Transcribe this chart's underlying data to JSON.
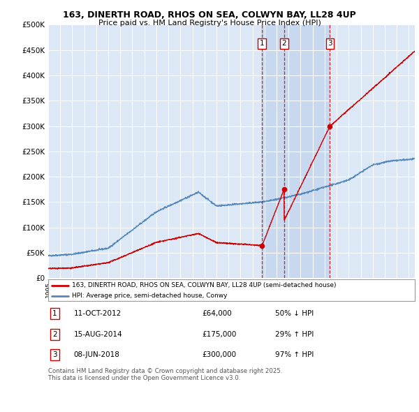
{
  "title_line1": "163, DINERTH ROAD, RHOS ON SEA, COLWYN BAY, LL28 4UP",
  "title_line2": "Price paid vs. HM Land Registry's House Price Index (HPI)",
  "plot_bg_color": "#dce8f5",
  "shade_color": "#c8d8ee",
  "ylim": [
    0,
    500000
  ],
  "yticks": [
    0,
    50000,
    100000,
    150000,
    200000,
    250000,
    300000,
    350000,
    400000,
    450000,
    500000
  ],
  "ytick_labels": [
    "£0",
    "£50K",
    "£100K",
    "£150K",
    "£200K",
    "£250K",
    "£300K",
    "£350K",
    "£400K",
    "£450K",
    "£500K"
  ],
  "xlim_start": 1995,
  "xlim_end": 2025.5,
  "hpi_color": "#5588bb",
  "price_color": "#cc0000",
  "vline_color": "#cc0000",
  "transactions": [
    {
      "date_num": 2012.78,
      "price": 64000,
      "label": "1"
    },
    {
      "date_num": 2014.62,
      "price": 175000,
      "label": "2"
    },
    {
      "date_num": 2018.44,
      "price": 300000,
      "label": "3"
    }
  ],
  "legend_price_label": "163, DINERTH ROAD, RHOS ON SEA, COLWYN BAY, LL28 4UP (semi-detached house)",
  "legend_hpi_label": "HPI: Average price, semi-detached house, Conwy",
  "footer": "Contains HM Land Registry data © Crown copyright and database right 2025.\nThis data is licensed under the Open Government Licence v3.0.",
  "table_rows": [
    [
      "1",
      "11-OCT-2012",
      "£64,000",
      "50% ↓ HPI"
    ],
    [
      "2",
      "15-AUG-2014",
      "£175,000",
      "29% ↑ HPI"
    ],
    [
      "3",
      "08-JUN-2018",
      "£300,000",
      "97% ↑ HPI"
    ]
  ]
}
